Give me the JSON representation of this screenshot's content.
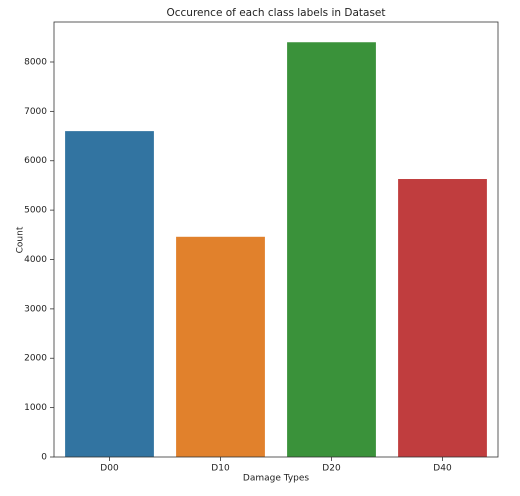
{
  "chart_data": {
    "type": "bar",
    "title": "Occurence of each class labels in Dataset",
    "xlabel": "Damage Types",
    "ylabel": "Count",
    "categories": [
      "D00",
      "D10",
      "D20",
      "D40"
    ],
    "values": [
      6600,
      4460,
      8400,
      5630
    ],
    "colors": [
      "#3274a1",
      "#e1812c",
      "#3a923a",
      "#c03d3e"
    ],
    "ylim": [
      0,
      8810
    ],
    "yticks": [
      0,
      1000,
      2000,
      3000,
      4000,
      5000,
      6000,
      7000,
      8000
    ],
    "grid": false
  }
}
